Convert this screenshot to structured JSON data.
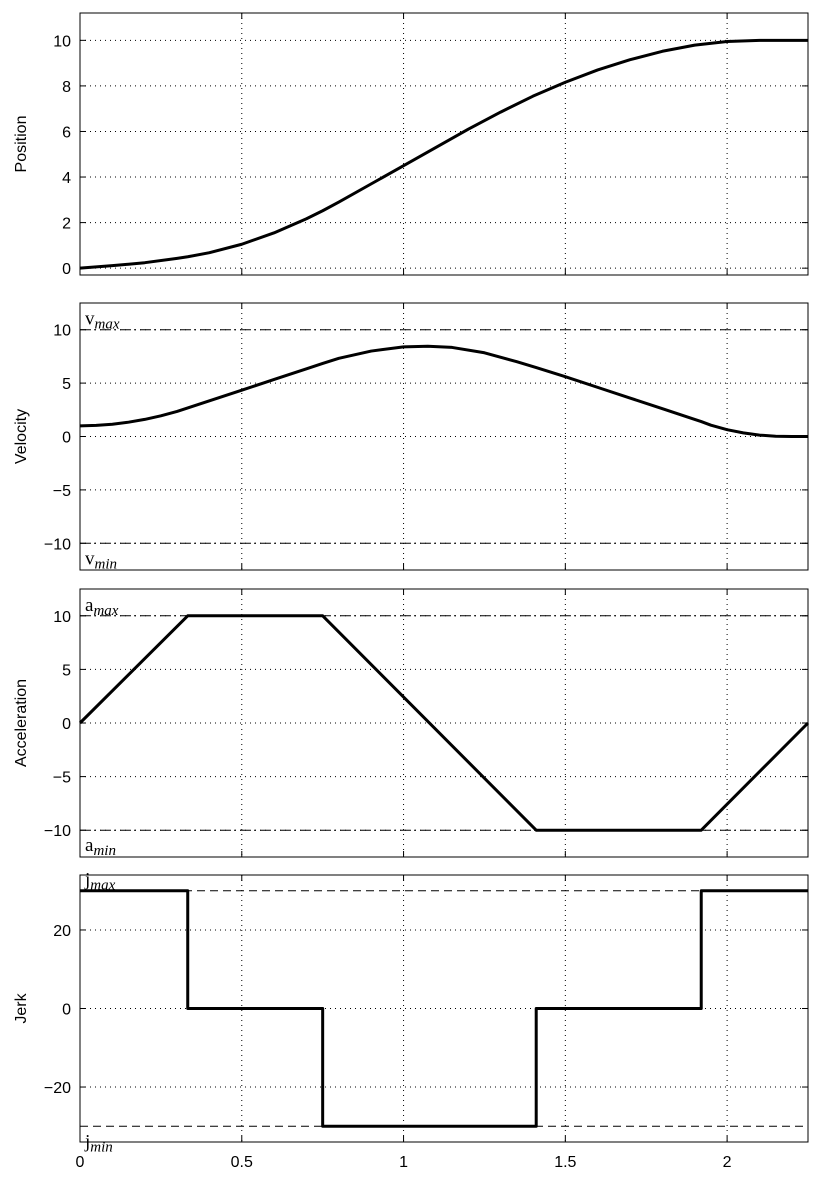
{
  "chart_data": [
    {
      "type": "line",
      "ylabel": "Position",
      "xlim": [
        0,
        2.25
      ],
      "ylim": [
        -0.3,
        11.2
      ],
      "xticks": [
        0,
        0.5,
        1,
        1.5,
        2
      ],
      "yticks": [
        0,
        2,
        4,
        6,
        8,
        10
      ],
      "show_xtick_labels": false,
      "grid": true,
      "series": [
        {
          "x": [
            0,
            0.1,
            0.2,
            0.3,
            0.333,
            0.4,
            0.5,
            0.6,
            0.7,
            0.75,
            0.8,
            0.9,
            1.0,
            1.1,
            1.2,
            1.3,
            1.4,
            1.5,
            1.6,
            1.7,
            1.8,
            1.9,
            2.0,
            2.1,
            2.2,
            2.25
          ],
          "y": [
            0,
            0.11,
            0.24,
            0.43,
            0.5,
            0.68,
            1.05,
            1.55,
            2.17,
            2.52,
            2.9,
            3.7,
            4.5,
            5.3,
            6.1,
            6.85,
            7.55,
            8.16,
            8.7,
            9.15,
            9.52,
            9.79,
            9.95,
            10.0,
            10.0,
            10.0
          ]
        }
      ]
    },
    {
      "type": "line",
      "ylabel": "Velocity",
      "xlim": [
        0,
        2.25
      ],
      "ylim": [
        -12.5,
        12.5
      ],
      "xticks": [
        0,
        0.5,
        1,
        1.5,
        2
      ],
      "yticks": [
        -10,
        -5,
        0,
        5,
        10
      ],
      "yticklabels": [
        "−10",
        "−5",
        "0",
        "5",
        "10"
      ],
      "show_xtick_labels": false,
      "grid": true,
      "limits": [
        {
          "value": 10,
          "label_base": "v",
          "label_sub": "max",
          "position": "above"
        },
        {
          "value": -10,
          "label_base": "v",
          "label_sub": "min",
          "position": "below"
        }
      ],
      "series": [
        {
          "x": [
            0,
            0.05,
            0.1,
            0.15,
            0.2,
            0.25,
            0.3,
            0.333,
            0.4,
            0.5,
            0.6,
            0.7,
            0.75,
            0.8,
            0.9,
            1.0,
            1.075,
            1.15,
            1.25,
            1.35,
            1.41,
            1.5,
            1.6,
            1.7,
            1.8,
            1.9,
            1.92,
            1.95,
            2.0,
            2.05,
            2.1,
            2.15,
            2.2,
            2.25
          ],
          "y": [
            1.0,
            1.04,
            1.15,
            1.34,
            1.6,
            1.94,
            2.35,
            2.67,
            3.34,
            4.34,
            5.34,
            6.34,
            6.84,
            7.32,
            8.0,
            8.39,
            8.45,
            8.34,
            7.84,
            7.0,
            6.45,
            5.6,
            4.6,
            3.6,
            2.6,
            1.6,
            1.4,
            1.06,
            0.64,
            0.34,
            0.13,
            0.02,
            0.0,
            0.0
          ]
        }
      ]
    },
    {
      "type": "line",
      "ylabel": "Acceleration",
      "xlim": [
        0,
        2.25
      ],
      "ylim": [
        -12.5,
        12.5
      ],
      "xticks": [
        0,
        0.5,
        1,
        1.5,
        2
      ],
      "yticks": [
        -10,
        -5,
        0,
        5,
        10
      ],
      "yticklabels": [
        "−10",
        "−5",
        "0",
        "5",
        "10"
      ],
      "show_xtick_labels": false,
      "grid": true,
      "limits": [
        {
          "value": 10,
          "label_base": "a",
          "label_sub": "max",
          "position": "above"
        },
        {
          "value": -10,
          "label_base": "a",
          "label_sub": "min",
          "position": "below"
        }
      ],
      "series": [
        {
          "x": [
            0,
            0.333,
            0.75,
            1.41,
            1.92,
            2.25
          ],
          "y": [
            0,
            10,
            10,
            -10,
            -10,
            0
          ]
        }
      ]
    },
    {
      "type": "line",
      "ylabel": "Jerk",
      "xlim": [
        0,
        2.25
      ],
      "ylim": [
        -34,
        34
      ],
      "xticks": [
        0,
        0.5,
        1,
        1.5,
        2
      ],
      "yticks": [
        -20,
        0,
        20
      ],
      "yticklabels": [
        "−20",
        "0",
        "20"
      ],
      "xticklabels": [
        "0",
        "0.5",
        "1",
        "1.5",
        "2"
      ],
      "show_xtick_labels": true,
      "grid": true,
      "limits": [
        {
          "value": 30,
          "label_base": "j",
          "label_sub": "max",
          "position": "above"
        },
        {
          "value": -30,
          "label_base": "j",
          "label_sub": "min",
          "position": "below"
        }
      ],
      "series": [
        {
          "x": [
            0,
            0.333,
            0.333,
            0.75,
            0.75,
            1.41,
            1.41,
            1.92,
            1.92,
            2.25
          ],
          "y": [
            30,
            30,
            0,
            0,
            -30,
            -30,
            0,
            0,
            30,
            30
          ]
        }
      ]
    }
  ]
}
